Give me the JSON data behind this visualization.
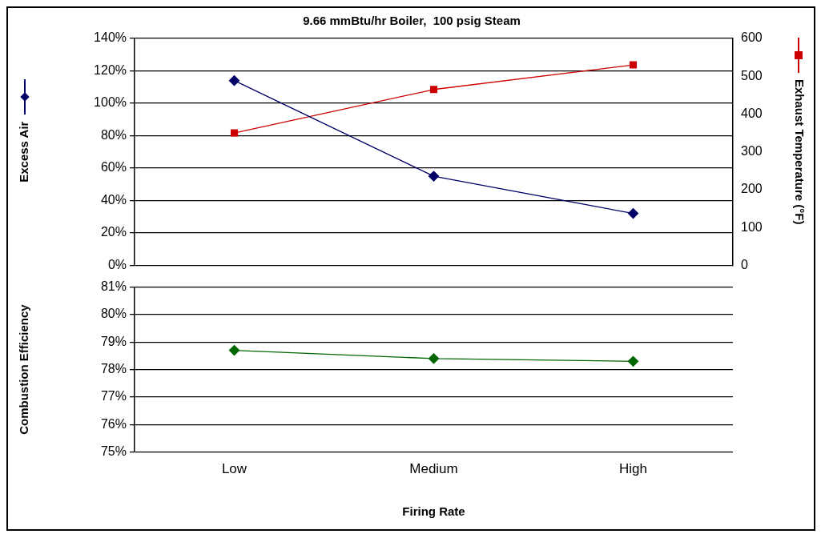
{
  "chart_data": [
    {
      "type": "line",
      "title": "9.66 mmBtu/hr Boiler,  100 psig Steam",
      "categories": [
        null,
        null,
        null
      ],
      "ylabel": "Excess Air",
      "y2label": "Exhaust Temperature (°F)",
      "series": [
        {
          "color": "#000066",
          "marker": "diamond",
          "values": [
            114,
            55,
            32
          ]
        },
        {
          "color": "#cc0000",
          "marker": "square",
          "axis": "y2",
          "values": [
            350,
            465,
            530
          ]
        }
      ],
      "ylim": [
        0,
        140
      ],
      "yticks": [
        {
          "value": 0,
          "label": "0%"
        },
        {
          "value": 20,
          "label": "20%"
        },
        {
          "value": 40,
          "label": "40%"
        },
        {
          "value": 60,
          "label": "60%"
        },
        {
          "value": 80,
          "label": "80%"
        },
        {
          "value": 100,
          "label": "100%"
        },
        {
          "value": 120,
          "label": "120%"
        },
        {
          "value": 140,
          "label": "140%"
        }
      ],
      "y2lim": [
        0,
        600
      ],
      "y2ticks": [
        0,
        100,
        200,
        300,
        400,
        500,
        600
      ],
      "grid": "y",
      "tick_labels": "y"
    },
    {
      "type": "line",
      "categories": [
        "Low",
        "Medium",
        "High"
      ],
      "xlabel": "Firing Rate",
      "ylabel": "Combustion Efficiency",
      "series": [
        {
          "color": "#006600",
          "marker": "diamond",
          "values": [
            78.7,
            78.4,
            78.3
          ]
        }
      ],
      "ylim": [
        75,
        81
      ],
      "yticks": [
        {
          "value": 75,
          "label": "75%"
        },
        {
          "value": 76,
          "label": "76%"
        },
        {
          "value": 77,
          "label": "77%"
        },
        {
          "value": 78,
          "label": "78%"
        },
        {
          "value": 79,
          "label": "79%"
        },
        {
          "value": 80,
          "label": "80%"
        },
        {
          "value": 81,
          "label": "81%"
        }
      ],
      "grid": "y"
    }
  ]
}
